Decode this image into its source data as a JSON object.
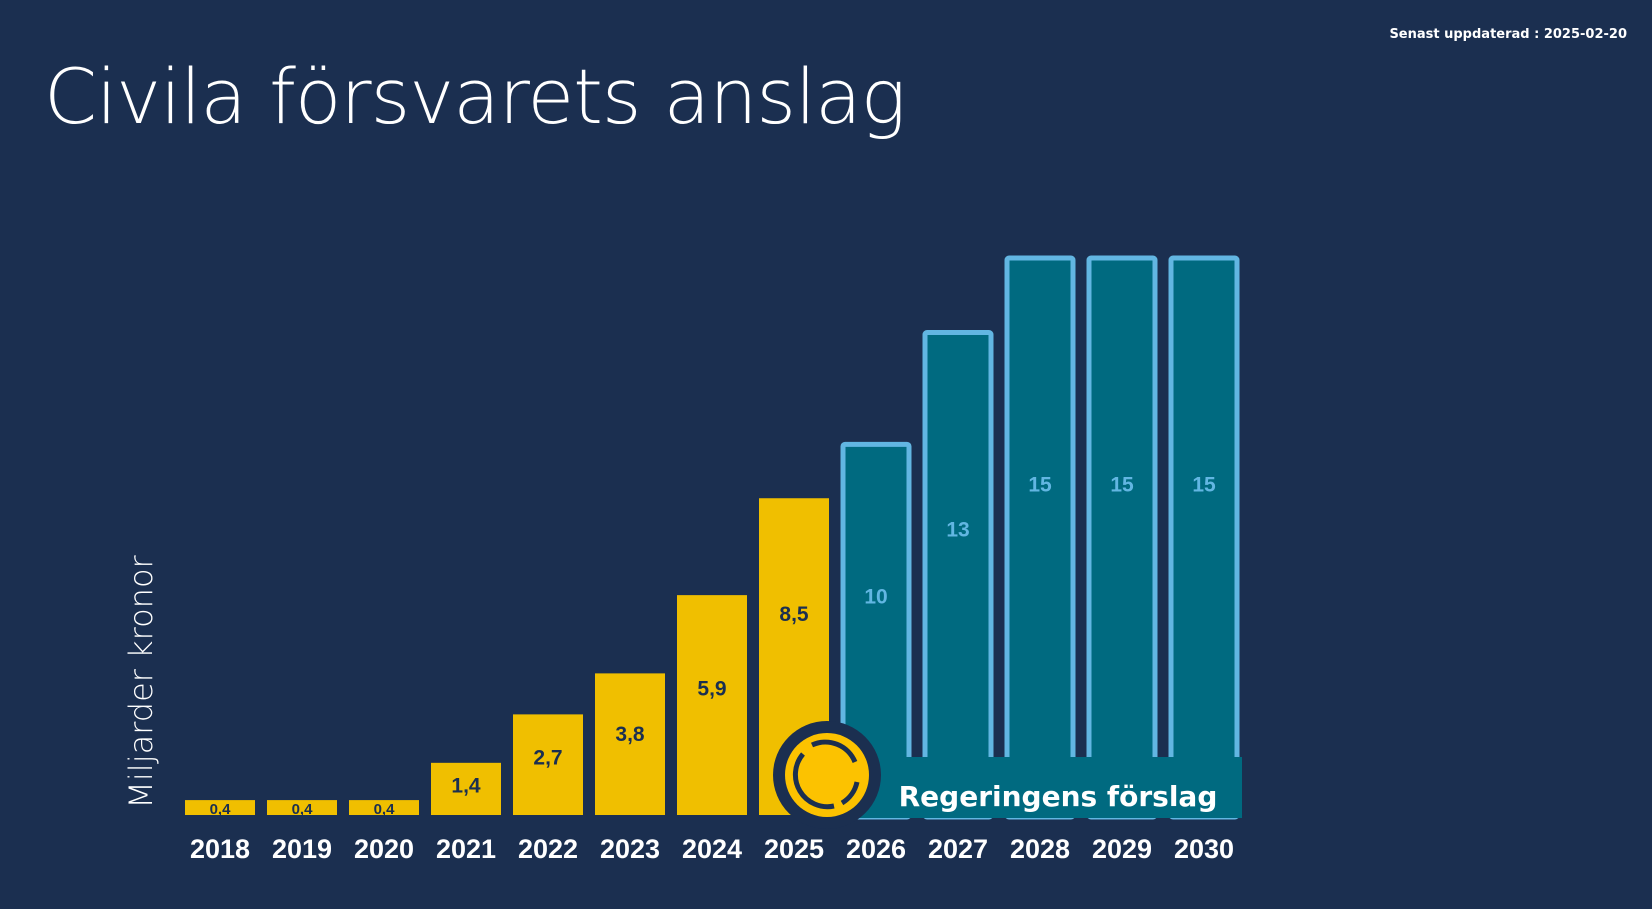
{
  "updated": "Senast uppdaterad : 2025-02-20",
  "colors": {
    "background": "#1b2f50",
    "actual": "#f0bf00",
    "proposal_fill": "#006a80",
    "proposal_stroke": "#62b6e2"
  },
  "chart_data": {
    "type": "bar",
    "title": "Civila försvarets anslag",
    "ylabel": "Miljarder kronor",
    "xlabel": "",
    "ylim": [
      0,
      15
    ],
    "grid": false,
    "categories": [
      "2018",
      "2019",
      "2020",
      "2021",
      "2022",
      "2023",
      "2024",
      "2025",
      "2026",
      "2027",
      "2028",
      "2029",
      "2030"
    ],
    "values": [
      0.4,
      0.4,
      0.4,
      1.4,
      2.7,
      3.8,
      5.9,
      8.5,
      10,
      13,
      15,
      15,
      15
    ],
    "labels": [
      "0,4",
      "0,4",
      "0,4",
      "1,4",
      "2,7",
      "3,8",
      "5,9",
      "8,5",
      "10",
      "13",
      "15",
      "15",
      "15"
    ],
    "proposal_from": "2026",
    "legend": {
      "label": "Regeringens förslag",
      "icon": "circle-arrows-icon",
      "placement": "bottom"
    }
  }
}
